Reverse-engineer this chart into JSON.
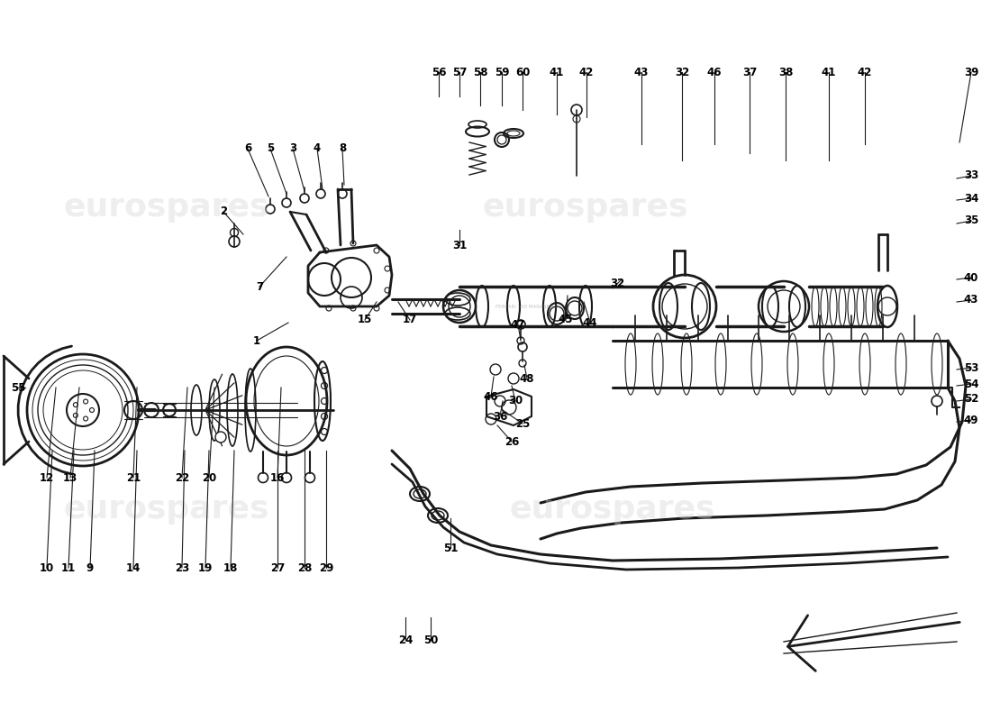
{
  "bg_color": "#ffffff",
  "line_color": "#1a1a1a",
  "label_color": "#000000",
  "wm_color": "#d5d5d5",
  "wm_text": "eurospares",
  "fig_width": 11.0,
  "fig_height": 8.0,
  "dpi": 100,
  "parts": [
    [
      "56",
      487,
      107,
      487,
      80
    ],
    [
      "57",
      510,
      107,
      510,
      80
    ],
    [
      "58",
      533,
      117,
      533,
      80
    ],
    [
      "59",
      557,
      117,
      557,
      80
    ],
    [
      "60",
      580,
      122,
      580,
      80
    ],
    [
      "41",
      618,
      127,
      618,
      80
    ],
    [
      "42",
      651,
      130,
      651,
      80
    ],
    [
      "43",
      712,
      160,
      712,
      80
    ],
    [
      "32",
      757,
      178,
      757,
      80
    ],
    [
      "46",
      793,
      160,
      793,
      80
    ],
    [
      "37",
      832,
      170,
      832,
      80
    ],
    [
      "38",
      872,
      178,
      872,
      80
    ],
    [
      "41",
      920,
      178,
      920,
      80
    ],
    [
      "42",
      960,
      160,
      960,
      80
    ],
    [
      "39",
      1065,
      158,
      1078,
      80
    ],
    [
      "33",
      1062,
      198,
      1078,
      195
    ],
    [
      "34",
      1062,
      222,
      1078,
      220
    ],
    [
      "35",
      1062,
      248,
      1078,
      245
    ],
    [
      "40",
      1062,
      310,
      1078,
      308
    ],
    [
      "43",
      1062,
      335,
      1078,
      333
    ],
    [
      "53",
      1062,
      410,
      1078,
      408
    ],
    [
      "54",
      1062,
      428,
      1078,
      426
    ],
    [
      "52",
      1062,
      445,
      1078,
      443
    ],
    [
      "49",
      1062,
      468,
      1078,
      466
    ],
    [
      "55",
      28,
      430,
      20,
      430
    ],
    [
      "12",
      62,
      430,
      52,
      530
    ],
    [
      "13",
      88,
      430,
      78,
      530
    ],
    [
      "21",
      152,
      430,
      148,
      530
    ],
    [
      "22",
      208,
      430,
      202,
      530
    ],
    [
      "20",
      238,
      430,
      232,
      530
    ],
    [
      "16",
      312,
      430,
      308,
      530
    ],
    [
      "10",
      58,
      500,
      52,
      630
    ],
    [
      "11",
      82,
      500,
      76,
      630
    ],
    [
      "9",
      105,
      500,
      100,
      630
    ],
    [
      "14",
      152,
      500,
      148,
      630
    ],
    [
      "23",
      205,
      500,
      202,
      630
    ],
    [
      "19",
      232,
      500,
      228,
      630
    ],
    [
      "18",
      260,
      500,
      256,
      630
    ],
    [
      "27",
      308,
      500,
      308,
      630
    ],
    [
      "28",
      338,
      500,
      338,
      630
    ],
    [
      "29",
      362,
      500,
      362,
      630
    ],
    [
      "24",
      450,
      685,
      450,
      710
    ],
    [
      "50",
      478,
      685,
      478,
      710
    ],
    [
      "51",
      500,
      575,
      500,
      608
    ],
    [
      "6",
      298,
      218,
      275,
      165
    ],
    [
      "5",
      318,
      215,
      300,
      165
    ],
    [
      "3",
      338,
      212,
      325,
      165
    ],
    [
      "4",
      358,
      210,
      352,
      165
    ],
    [
      "8",
      382,
      205,
      380,
      165
    ],
    [
      "2",
      270,
      260,
      248,
      235
    ],
    [
      "7",
      318,
      285,
      288,
      318
    ],
    [
      "1",
      320,
      358,
      285,
      378
    ],
    [
      "15",
      418,
      335,
      405,
      355
    ],
    [
      "17",
      442,
      335,
      455,
      355
    ],
    [
      "31",
      510,
      255,
      510,
      272
    ],
    [
      "45",
      630,
      328,
      628,
      355
    ],
    [
      "44",
      648,
      335,
      655,
      358
    ],
    [
      "32",
      690,
      310,
      685,
      315
    ],
    [
      "46",
      548,
      418,
      545,
      440
    ],
    [
      "30",
      568,
      428,
      572,
      445
    ],
    [
      "25",
      558,
      455,
      580,
      470
    ],
    [
      "26",
      552,
      472,
      568,
      490
    ],
    [
      "47",
      578,
      378,
      575,
      360
    ],
    [
      "48",
      582,
      405,
      585,
      420
    ],
    [
      "36",
      558,
      445,
      555,
      462
    ]
  ]
}
